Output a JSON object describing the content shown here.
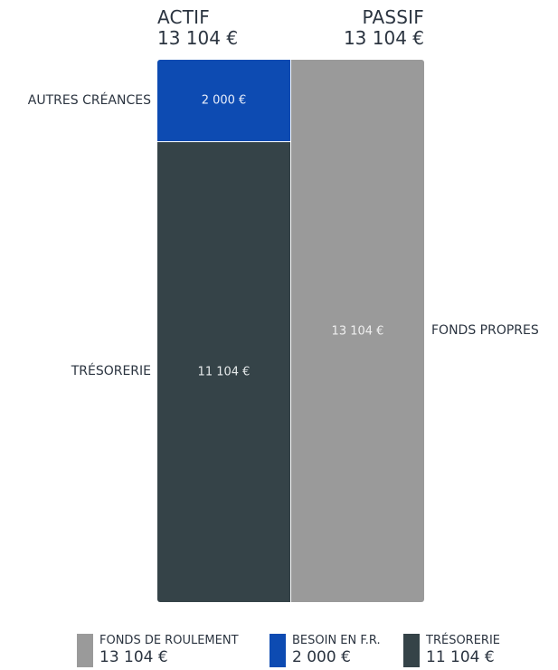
{
  "chart_data": {
    "type": "bar",
    "stacked": true,
    "headers": [
      {
        "title": "ACTIF",
        "total": "13 104 €"
      },
      {
        "title": "PASSIF",
        "total": "13 104 €"
      }
    ],
    "columns": [
      {
        "name": "ACTIF",
        "segments": [
          {
            "label": "AUTRES CRÉANCES",
            "value": 2000,
            "value_label": "2 000 €",
            "color": "#0d4bb2",
            "text_color": "#e8eefb",
            "label_side": "left"
          },
          {
            "label": "TRÉSORERIE",
            "value": 11104,
            "value_label": "11 104 €",
            "color": "#354348",
            "text_color": "#e6eaeb",
            "label_side": "left"
          }
        ]
      },
      {
        "name": "PASSIF",
        "segments": [
          {
            "label": "FONDS PROPRES",
            "value": 13104,
            "value_label": "13 104 €",
            "color": "#9a9a9a",
            "text_color": "#efefef",
            "label_side": "right"
          }
        ]
      }
    ],
    "legend": [
      {
        "name": "FONDS DE ROULEMENT",
        "value": "13 104 €",
        "color": "#9a9a9a"
      },
      {
        "name": "BESOIN EN F.R.",
        "value": "2 000 €",
        "color": "#0d4bb2"
      },
      {
        "name": "TRÉSORERIE",
        "value": "11 104 €",
        "color": "#354348"
      }
    ]
  }
}
